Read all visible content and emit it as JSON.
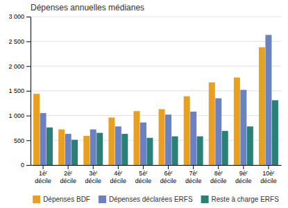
{
  "chart_data": {
    "type": "bar",
    "title": "Dépenses annuelles médianes",
    "categories": [
      "1èʳ\ndécile",
      "2èʳ\ndécile",
      "3èʳ\ndécile",
      "4èʳ\ndécile",
      "5èʳ\ndécile",
      "6èʳ\ndécile",
      "7èʳ\ndécile",
      "8èʳ\ndécile",
      "9èʳ\ndécile",
      "10èʳ\ndécile"
    ],
    "series": [
      {
        "name": "Dépenses BDF",
        "color": "#E8A020",
        "values": [
          1440,
          720,
          590,
          960,
          1090,
          1130,
          1390,
          1670,
          1770,
          2380
        ]
      },
      {
        "name": "Dépenses déclarées ERFS",
        "color": "#6B82C0",
        "values": [
          1050,
          630,
          720,
          780,
          860,
          1020,
          1080,
          1350,
          1520,
          2630
        ]
      },
      {
        "name": "Reste à charge ERFS",
        "color": "#2A8075",
        "values": [
          760,
          510,
          650,
          630,
          550,
          580,
          580,
          690,
          780,
          1310
        ]
      }
    ],
    "ylim": [
      0,
      3000
    ],
    "yticks": [
      0,
      500,
      {
        "value": 1000,
        "label": "1 000"
      },
      {
        "value": 1500,
        "label": "1 500"
      },
      {
        "value": 2000,
        "label": "2 000"
      },
      {
        "value": 2500,
        "label": "2 500"
      },
      {
        "value": 3000,
        "label": "3 000"
      }
    ],
    "grid": true,
    "legend": "bottom"
  }
}
